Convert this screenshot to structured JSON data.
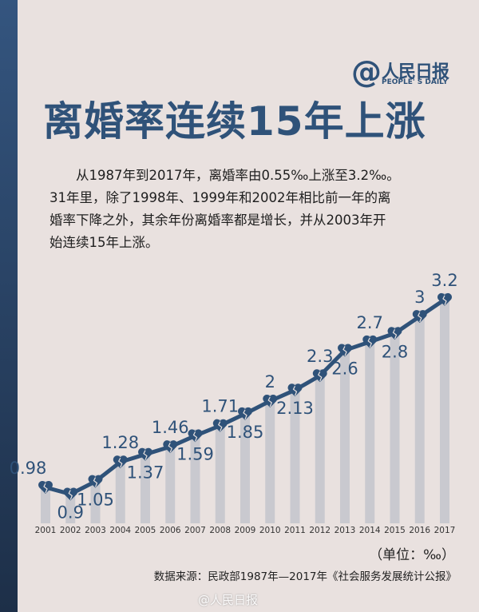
{
  "logo": {
    "at": "@",
    "cn": "人民日报",
    "en": "PEOPLE' S DAILY"
  },
  "title": "离婚率连续15年上涨",
  "description": [
    "　　从1987年到2017年，离婚率由0.55‰上涨至3.2‰。",
    "31年里，除了1998年、1999年和2002年相比前一年的离",
    "婚率下降之外，其余年份离婚率都是增长，并从2003年开",
    "始连续15年上涨。"
  ],
  "unit": "（单位：‰）",
  "source": "数据来源：民政部1987年—2017年《社会服务发展统计公报》",
  "watermark": "@人民日报",
  "colors": {
    "line": "#2f5279",
    "bars": "#c9c9cf",
    "background": "#e9e1df"
  },
  "chart_data": {
    "type": "line",
    "marker": "broken-heart-icon",
    "categories": [
      "2001",
      "2002",
      "2003",
      "2004",
      "2005",
      "2006",
      "2007",
      "2008",
      "2009",
      "2010",
      "2011",
      "2012",
      "2013",
      "2014",
      "2015",
      "2016",
      "2017"
    ],
    "values": [
      0.98,
      0.9,
      1.05,
      1.28,
      1.37,
      1.46,
      1.59,
      1.71,
      1.85,
      2,
      2.13,
      2.3,
      2.6,
      2.7,
      2.8,
      3,
      3.2
    ],
    "data_labels": [
      "0.98",
      "0.9",
      "1.05",
      "1.28",
      "1.37",
      "1.46",
      "1.59",
      "1.71",
      "1.85",
      "2",
      "2.13",
      "2.3",
      "2.6",
      "2.7",
      "2.8",
      "3",
      "3.2"
    ],
    "label_side": [
      "above",
      "below",
      "below",
      "above",
      "below",
      "above",
      "below",
      "above",
      "below",
      "above",
      "below",
      "above",
      "below",
      "above",
      "below",
      "above",
      "above"
    ],
    "unit": "‰"
  }
}
